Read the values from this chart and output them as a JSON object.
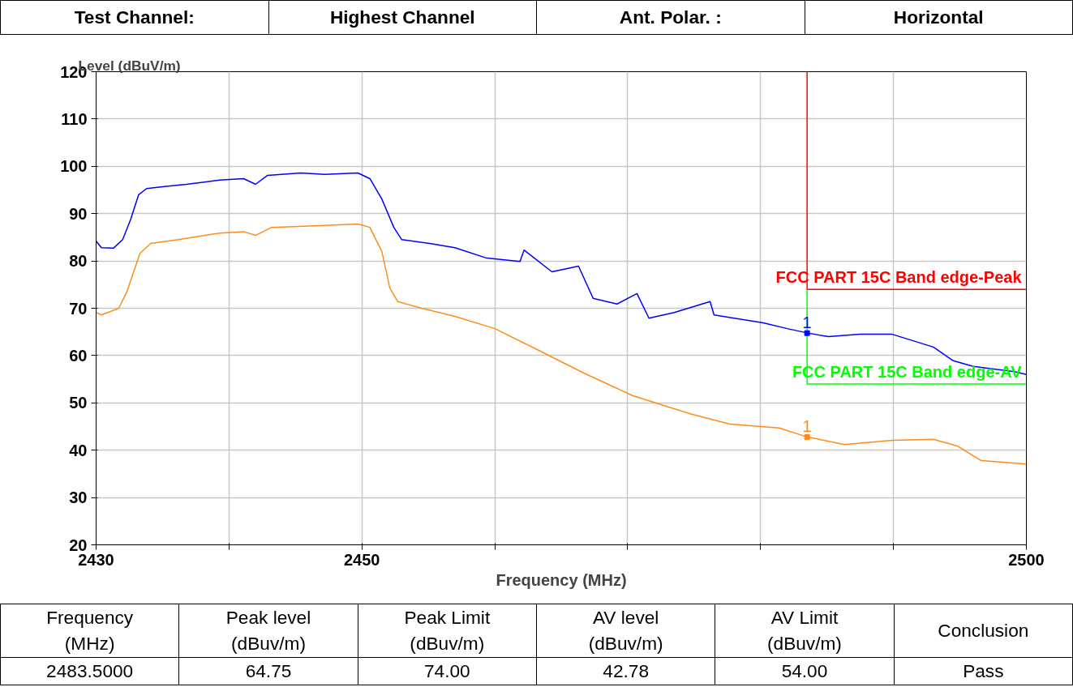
{
  "chart_data": {
    "type": "line",
    "xlabel": "Frequency (MHz)",
    "ylabel": "Level (dBuV/m)",
    "xlim": [
      2430,
      2500
    ],
    "ylim": [
      20,
      120
    ],
    "xticks": [
      2430,
      {
        "value": 2440,
        "label": null
      },
      2450,
      {
        "value": 2460,
        "label": null
      },
      {
        "value": 2470,
        "label": null
      },
      {
        "value": 2480,
        "label": null
      },
      {
        "value": 2490,
        "label": null
      },
      2500
    ],
    "yticks": [
      20,
      30,
      40,
      50,
      60,
      70,
      80,
      90,
      100,
      110,
      120
    ],
    "grid": true,
    "series": [
      {
        "color": "#0000ff",
        "x": [
          2430,
          2430.4,
          2431.3,
          2432.0,
          2432.6,
          2433.2,
          2433.8,
          2435.0,
          2436.8,
          2439.3,
          2441.1,
          2442.0,
          2442.9,
          2445.4,
          2447.2,
          2449.7,
          2450.6,
          2451.5,
          2452.4,
          2453.0,
          2455.1,
          2457.0,
          2459.4,
          2461.9,
          2462.2,
          2464.3,
          2466.3,
          2467.4,
          2469.2,
          2470.7,
          2471.6,
          2473.5,
          2476.2,
          2476.5,
          2480.2,
          2482.0,
          2483.5,
          2485.1,
          2487.5,
          2489.9,
          2493.0,
          2494.5,
          2496.0,
          2499.1,
          2500
        ],
        "values": [
          84.2,
          82.8,
          82.7,
          84.5,
          88.8,
          94.0,
          95.3,
          95.7,
          96.2,
          97.1,
          97.4,
          96.2,
          98.1,
          98.6,
          98.3,
          98.6,
          97.4,
          93.1,
          87.1,
          84.5,
          83.7,
          82.8,
          80.6,
          79.9,
          82.3,
          77.7,
          78.9,
          72.1,
          70.9,
          73.1,
          67.9,
          69.1,
          71.4,
          68.6,
          66.9,
          65.7,
          64.8,
          64.0,
          64.5,
          64.5,
          61.8,
          58.9,
          57.7,
          56.6,
          56.0
        ]
      },
      {
        "color": "#ff8c1a",
        "x": [
          2430,
          2430.4,
          2431.7,
          2432.3,
          2433.3,
          2434.1,
          2436.2,
          2439.3,
          2441.1,
          2442.0,
          2443.2,
          2447.2,
          2449.7,
          2450.6,
          2451.5,
          2452.1,
          2452.7,
          2454.5,
          2457.0,
          2460.0,
          2463.1,
          2466.7,
          2470.4,
          2474.7,
          2477.7,
          2481.4,
          2483.5,
          2486.3,
          2489.9,
          2493.0,
          2494.8,
          2496.6,
          2500
        ],
        "values": [
          69.1,
          68.6,
          70.0,
          73.4,
          81.6,
          83.7,
          84.5,
          85.9,
          86.2,
          85.4,
          87.1,
          87.5,
          87.8,
          87.1,
          82.0,
          74.3,
          71.4,
          70.0,
          68.3,
          65.7,
          61.4,
          56.3,
          51.5,
          47.7,
          45.5,
          44.7,
          42.8,
          41.2,
          42.1,
          42.3,
          40.9,
          37.8,
          37.1
        ]
      },
      {
        "name": "FCC PART 15C Band edge-Peak",
        "color": "#ff0000",
        "x": [
          2483.5,
          2483.5,
          2500
        ],
        "values": [
          120,
          74,
          74
        ]
      },
      {
        "name": "FCC PART 15C Band edge-AV",
        "color": "#00ff00",
        "x": [
          2483.5,
          2483.5,
          2500
        ],
        "values": [
          74,
          54,
          54
        ]
      }
    ],
    "annotations": [
      "Test Channel:",
      "Highest Channel",
      "Ant. Polar. :",
      "Horizontal",
      "Frequency\n(MHz)",
      "Peak level\n(dBuv/m)",
      "Peak Limit\n(dBuv/m)",
      "AV level\n(dBuv/m)",
      "AV Limit\n(dBuv/m)",
      "Conclusion",
      "2483.5000",
      "64.75",
      "74.00",
      "42.78",
      "54.00",
      "Pass",
      {
        "text": "1",
        "x": 2483.5,
        "y": 64.75
      },
      {
        "text": "1",
        "x": 2483.5,
        "y": 42.78
      }
    ]
  }
}
